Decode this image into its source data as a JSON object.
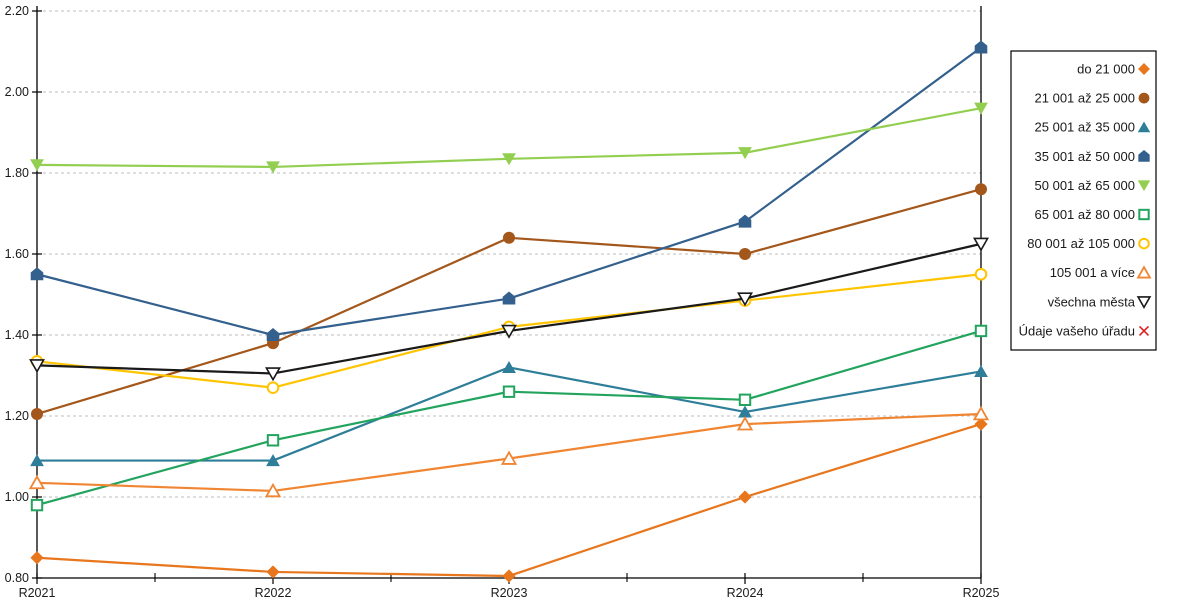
{
  "chart_data": {
    "type": "line",
    "title": "",
    "xlabel": "",
    "ylabel": "",
    "categories": [
      "R2021",
      "R2022",
      "R2023",
      "R2024",
      "R2025"
    ],
    "series": [
      {
        "name": "do 21 000",
        "marker": "diamond-filled",
        "color": "#E8761D",
        "values": [
          0.85,
          0.815,
          0.805,
          1.0,
          1.18
        ]
      },
      {
        "name": "21 001 až 25 000",
        "marker": "circle-filled",
        "color": "#A4571B",
        "values": [
          1.205,
          1.38,
          1.64,
          1.6,
          1.76
        ]
      },
      {
        "name": "25 001 až 35 000",
        "marker": "triangle-up-filled",
        "color": "#2F7E99",
        "values": [
          1.09,
          1.09,
          1.32,
          1.21,
          1.31
        ]
      },
      {
        "name": "35 001 až 50 000",
        "marker": "pentagon-filled",
        "color": "#33608D",
        "values": [
          1.55,
          1.4,
          1.49,
          1.68,
          2.11
        ]
      },
      {
        "name": "50 001 až 65 000",
        "marker": "triangle-down-filled",
        "color": "#92CE50",
        "values": [
          1.82,
          1.815,
          1.835,
          1.85,
          1.96
        ]
      },
      {
        "name": "65 001 až 80 000",
        "marker": "square-open",
        "color": "#23A45E",
        "values": [
          0.98,
          1.14,
          1.26,
          1.24,
          1.41
        ]
      },
      {
        "name": "80 001 až 105 000",
        "marker": "circle-open",
        "color": "#FFC400",
        "values": [
          1.335,
          1.27,
          1.42,
          1.485,
          1.55
        ]
      },
      {
        "name": "105 001 a více",
        "marker": "triangle-up-open",
        "color": "#F08532",
        "values": [
          1.035,
          1.015,
          1.095,
          1.18,
          1.205
        ]
      },
      {
        "name": "všechna města",
        "marker": "triangle-down-open",
        "color": "#1A1A1A",
        "values": [
          1.325,
          1.305,
          1.41,
          1.49,
          1.625
        ]
      },
      {
        "name": "Údaje vašeho úřadu",
        "marker": "x",
        "color": "#E02020",
        "values": []
      }
    ],
    "ylim": [
      0.8,
      2.2
    ],
    "ytick_step": 0.2,
    "ytick_labels": [
      "0.80",
      "1.00",
      "1.20",
      "1.40",
      "1.60",
      "1.80",
      "2.00",
      "2.20"
    ],
    "grid": "horizontal-dashed",
    "gridline_color": "#BDBDBD",
    "axis_color": "#000000",
    "legend_position": "right",
    "legend_border_color": "#000000",
    "background_color": "#FFFFFF"
  }
}
